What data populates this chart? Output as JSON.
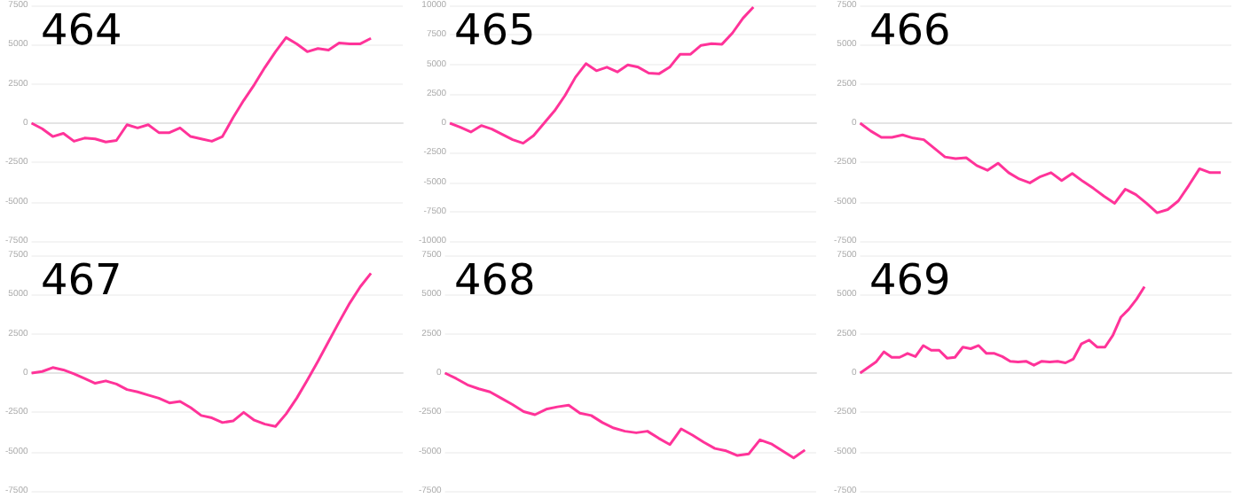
{
  "chart_data": [
    {
      "type": "line",
      "title": "464",
      "categories": [
        null,
        null,
        null,
        null,
        null,
        null,
        null,
        null,
        null,
        null,
        null,
        null,
        null,
        null,
        null,
        null,
        null,
        null,
        null,
        null,
        null,
        null,
        null,
        null,
        null,
        null,
        null,
        null,
        null,
        null,
        null,
        null,
        null,
        null,
        null,
        null
      ],
      "series": [
        {
          "color": "#ff3399",
          "values": [
            0,
            -350,
            -850,
            -650,
            -1150,
            -950,
            -1000,
            -1200,
            -1100,
            -100,
            -300,
            -100,
            -600,
            -600,
            -300,
            -850,
            -1000,
            -1150,
            -850,
            350,
            1450,
            2450,
            3550,
            4550,
            5450,
            5050,
            4550,
            4750,
            4650,
            5100,
            5050,
            5050,
            5400,
            null,
            null,
            null
          ]
        }
      ],
      "ylim": [
        -7500,
        7500
      ],
      "yticks": [
        -7500,
        -5000,
        -2500,
        0,
        2500,
        5000,
        7500
      ],
      "grid": "y"
    },
    {
      "type": "line",
      "title": "465",
      "categories": [
        null,
        null,
        null,
        null,
        null,
        null,
        null,
        null,
        null,
        null,
        null,
        null,
        null,
        null,
        null,
        null,
        null,
        null,
        null,
        null,
        null,
        null,
        null,
        null,
        null,
        null,
        null,
        null,
        null,
        null,
        null,
        null,
        null,
        null,
        null,
        null
      ],
      "series": [
        {
          "color": "#ff3399",
          "values": [
            0,
            -350,
            -750,
            -200,
            -500,
            -950,
            -1400,
            -1700,
            -1050,
            0,
            1050,
            2350,
            3900,
            5050,
            4450,
            4750,
            4350,
            4950,
            4750,
            4250,
            4200,
            4750,
            5850,
            5850,
            6600,
            6750,
            6700,
            7650,
            8900,
            9850,
            null,
            null,
            null,
            null,
            null,
            null
          ]
        }
      ],
      "ylim": [
        -10000,
        10000
      ],
      "yticks": [
        -10000,
        -7500,
        -5000,
        -2500,
        0,
        2500,
        5000,
        7500,
        10000
      ],
      "grid": "y"
    },
    {
      "type": "line",
      "title": "466",
      "categories": [
        null,
        null,
        null,
        null,
        null,
        null,
        null,
        null,
        null,
        null,
        null,
        null,
        null,
        null,
        null,
        null,
        null,
        null,
        null,
        null,
        null,
        null,
        null,
        null,
        null,
        null,
        null,
        null,
        null,
        null,
        null,
        null,
        null,
        null,
        null,
        null
      ],
      "series": [
        {
          "color": "#ff3399",
          "values": [
            0,
            -500,
            -900,
            -900,
            -750,
            -950,
            -1050,
            -1600,
            -2150,
            -2250,
            -2200,
            -2700,
            -3000,
            -2550,
            -3150,
            -3550,
            -3800,
            -3400,
            -3150,
            -3650,
            -3200,
            -3700,
            -4150,
            -4650,
            -5100,
            -4200,
            -4550,
            -5100,
            -5700,
            -5500,
            -4950,
            -3950,
            -2900,
            -3150,
            -3150,
            null
          ]
        }
      ],
      "ylim": [
        -7500,
        7500
      ],
      "yticks": [
        -7500,
        -5000,
        -2500,
        0,
        2500,
        5000,
        7500
      ],
      "grid": "y"
    },
    {
      "type": "line",
      "title": "467",
      "categories": [
        null,
        null,
        null,
        null,
        null,
        null,
        null,
        null,
        null,
        null,
        null,
        null,
        null,
        null,
        null,
        null,
        null,
        null,
        null,
        null,
        null,
        null,
        null,
        null,
        null,
        null,
        null,
        null,
        null,
        null,
        null,
        null,
        null,
        null,
        null,
        null
      ],
      "series": [
        {
          "color": "#ff3399",
          "values": [
            0,
            100,
            350,
            200,
            -50,
            -350,
            -650,
            -500,
            -700,
            -1050,
            -1200,
            -1400,
            -1600,
            -1900,
            -1800,
            -2200,
            -2700,
            -2850,
            -3150,
            -3050,
            -2500,
            -3000,
            -3250,
            -3400,
            -2600,
            -1600,
            -450,
            750,
            2000,
            3250,
            4450,
            5500,
            6350,
            null,
            null,
            null
          ]
        }
      ],
      "ylim": [
        -7500,
        7500
      ],
      "yticks": [
        -7500,
        -5000,
        -2500,
        0,
        2500,
        5000,
        7500
      ],
      "grid": "y"
    },
    {
      "type": "line",
      "title": "468",
      "categories": [
        null,
        null,
        null,
        null,
        null,
        null,
        null,
        null,
        null,
        null,
        null,
        null,
        null,
        null,
        null,
        null,
        null,
        null,
        null,
        null,
        null,
        null,
        null,
        null,
        null,
        null,
        null,
        null,
        null,
        null,
        null,
        null,
        null,
        null
      ],
      "series": [
        {
          "color": "#ff3399",
          "values": [
            0,
            -350,
            -750,
            -1000,
            -1200,
            -1600,
            -2000,
            -2450,
            -2650,
            -2300,
            -2150,
            -2050,
            -2550,
            -2700,
            -3150,
            -3500,
            -3700,
            -3800,
            -3700,
            -4150,
            -4550,
            -3550,
            -3950,
            -4400,
            -4800,
            -4950,
            -5250,
            -5150,
            -4250,
            -4500,
            -4950,
            -5400,
            -4900,
            null
          ]
        }
      ],
      "ylim": [
        -7500,
        7500
      ],
      "yticks": [
        -7500,
        -5000,
        -2500,
        0,
        2500,
        5000,
        7500
      ],
      "grid": "y"
    },
    {
      "type": "line",
      "title": "469",
      "categories": [
        null,
        null,
        null,
        null,
        null,
        null,
        null,
        null,
        null,
        null,
        null,
        null,
        null,
        null,
        null,
        null,
        null,
        null,
        null,
        null,
        null,
        null,
        null,
        null,
        null,
        null,
        null,
        null,
        null,
        null,
        null,
        null,
        null,
        null,
        null,
        null,
        null,
        null,
        null,
        null,
        null,
        null,
        null,
        null,
        null,
        null,
        null,
        null
      ],
      "series": [
        {
          "color": "#ff3399",
          "values": [
            0,
            350,
            700,
            1350,
            1000,
            1000,
            1250,
            1050,
            1750,
            1450,
            1450,
            950,
            1000,
            1650,
            1550,
            1750,
            1250,
            1250,
            1050,
            750,
            700,
            750,
            500,
            750,
            700,
            750,
            650,
            900,
            1850,
            2100,
            1650,
            1650,
            2400,
            3550,
            4050,
            4700,
            5500,
            null,
            null,
            null,
            null,
            null,
            null,
            null,
            null,
            null,
            null,
            null
          ]
        }
      ],
      "ylim": [
        -7500,
        7500
      ],
      "yticks": [
        -7500,
        -5000,
        -2500,
        0,
        2500,
        5000,
        7500
      ],
      "grid": "y"
    }
  ]
}
